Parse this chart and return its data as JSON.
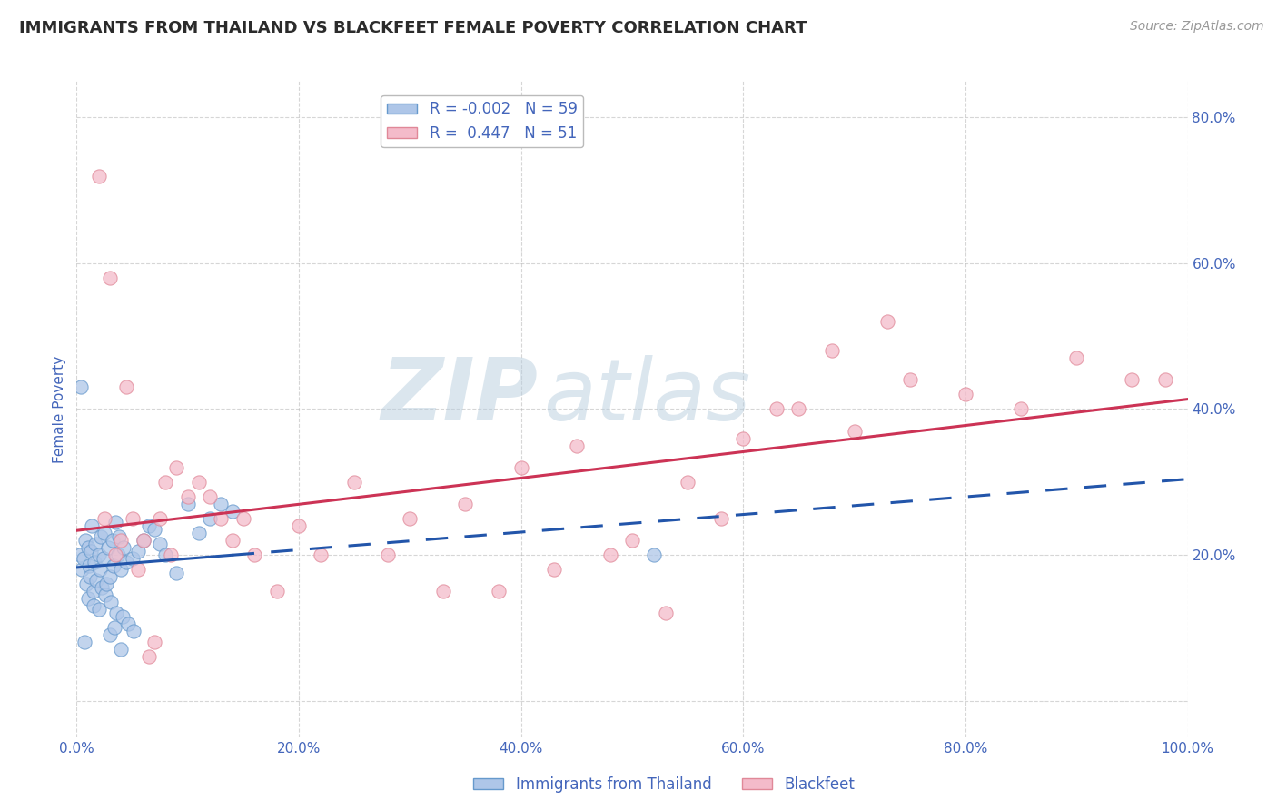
{
  "title": "IMMIGRANTS FROM THAILAND VS BLACKFEET FEMALE POVERTY CORRELATION CHART",
  "source": "Source: ZipAtlas.com",
  "ylabel": "Female Poverty",
  "legend_label_blue": "Immigrants from Thailand",
  "legend_label_pink": "Blackfeet",
  "R_blue": -0.002,
  "N_blue": 59,
  "R_pink": 0.447,
  "N_pink": 51,
  "xlim": [
    0.0,
    100.0
  ],
  "ylim": [
    -5.0,
    85.0
  ],
  "title_color": "#2B2B2B",
  "title_fontsize": 13,
  "source_color": "#999999",
  "axis_label_color": "#4466BB",
  "tick_color": "#4466BB",
  "grid_color": "#BBBBBB",
  "watermark_color": "#B8CEDE",
  "blue_scatter_color": "#AEC6E8",
  "pink_scatter_color": "#F4BBCA",
  "blue_edge_color": "#6699CC",
  "pink_edge_color": "#E08898",
  "blue_line_color": "#2255AA",
  "pink_line_color": "#CC3355",
  "blue_scatter_x": [
    0.3,
    0.5,
    0.6,
    0.7,
    0.8,
    0.9,
    1.0,
    1.0,
    1.1,
    1.2,
    1.3,
    1.4,
    1.5,
    1.5,
    1.6,
    1.7,
    1.8,
    2.0,
    2.0,
    2.1,
    2.2,
    2.3,
    2.4,
    2.5,
    2.6,
    2.7,
    2.8,
    3.0,
    3.0,
    3.1,
    3.2,
    3.3,
    3.4,
    3.5,
    3.6,
    3.7,
    3.8,
    4.0,
    4.0,
    4.1,
    4.2,
    4.5,
    4.6,
    5.0,
    5.1,
    5.5,
    6.0,
    6.5,
    7.0,
    7.5,
    8.0,
    9.0,
    10.0,
    11.0,
    12.0,
    13.0,
    14.0,
    0.4,
    52.0
  ],
  "blue_scatter_y": [
    20.0,
    18.0,
    19.5,
    8.0,
    22.0,
    16.0,
    21.0,
    14.0,
    18.5,
    17.0,
    20.5,
    24.0,
    15.0,
    13.0,
    19.0,
    21.5,
    16.5,
    20.0,
    12.5,
    18.0,
    22.5,
    15.5,
    19.5,
    23.0,
    14.5,
    16.0,
    21.0,
    17.0,
    9.0,
    13.5,
    22.0,
    18.5,
    10.0,
    24.5,
    12.0,
    20.0,
    22.5,
    18.0,
    7.0,
    11.5,
    21.0,
    19.0,
    10.5,
    19.5,
    9.5,
    20.5,
    22.0,
    24.0,
    23.5,
    21.5,
    20.0,
    17.5,
    27.0,
    23.0,
    25.0,
    27.0,
    26.0,
    43.0,
    20.0
  ],
  "pink_scatter_x": [
    2.0,
    2.5,
    3.0,
    3.5,
    4.0,
    4.5,
    5.0,
    5.5,
    6.0,
    6.5,
    7.0,
    7.5,
    8.0,
    8.5,
    9.0,
    10.0,
    11.0,
    12.0,
    13.0,
    14.0,
    15.0,
    16.0,
    18.0,
    20.0,
    22.0,
    25.0,
    28.0,
    30.0,
    33.0,
    35.0,
    38.0,
    40.0,
    43.0,
    45.0,
    48.0,
    50.0,
    53.0,
    55.0,
    58.0,
    60.0,
    63.0,
    65.0,
    68.0,
    70.0,
    73.0,
    75.0,
    80.0,
    85.0,
    90.0,
    95.0,
    98.0
  ],
  "pink_scatter_y": [
    72.0,
    25.0,
    58.0,
    20.0,
    22.0,
    43.0,
    25.0,
    18.0,
    22.0,
    6.0,
    8.0,
    25.0,
    30.0,
    20.0,
    32.0,
    28.0,
    30.0,
    28.0,
    25.0,
    22.0,
    25.0,
    20.0,
    15.0,
    24.0,
    20.0,
    30.0,
    20.0,
    25.0,
    15.0,
    27.0,
    15.0,
    32.0,
    18.0,
    35.0,
    20.0,
    22.0,
    12.0,
    30.0,
    25.0,
    36.0,
    40.0,
    40.0,
    48.0,
    37.0,
    52.0,
    44.0,
    42.0,
    40.0,
    47.0,
    44.0,
    44.0
  ],
  "ytick_positions": [
    0,
    20,
    40,
    60,
    80
  ],
  "ytick_labels": [
    "",
    "20.0%",
    "40.0%",
    "60.0%",
    "80.0%"
  ],
  "xtick_positions": [
    0,
    20,
    40,
    60,
    80,
    100
  ],
  "xtick_labels": [
    "0.0%",
    "20.0%",
    "40.0%",
    "60.0%",
    "80.0%",
    "100.0%"
  ]
}
